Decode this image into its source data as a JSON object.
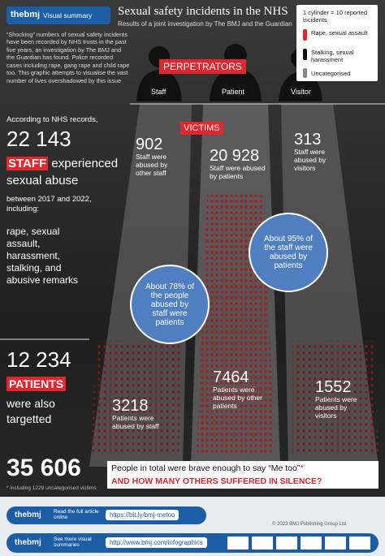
{
  "header": {
    "brand": "thebmj",
    "label": "Visual summary",
    "title": "Sexual safety incidents in the NHS",
    "subtitle": "Results of a joint investigation by The BMJ and the Guardian"
  },
  "legend": {
    "unit": "1 cylinder = 10 reported incidents",
    "items": [
      "Rape, sexual assault",
      "Stalking, sexual harassment",
      "Uncategorised"
    ]
  },
  "intro": "“Shocking” numbers of sexual safety incidents have been recorded by NHS trusts in the past five years, an investigation by The BMJ and the Guardian has found. Police recorded cases including rape, gang rape and child rape too. This graphic attempts to visualise the vast number of lives overshadowed by this issue",
  "perpetrators": {
    "heading": "PERPETRATORS",
    "groups": [
      "Staff",
      "Patient",
      "Visitor"
    ]
  },
  "victims_heading": "VICTIMS",
  "staff": {
    "lead": "According to NHS records,",
    "total": "22 143",
    "tag": "STAFF",
    "line1": "experienced",
    "line2": "sexual abuse",
    "period": "between 2017 and 2022, including:",
    "types": "rape, sexual assault, harassment, stalking, and abusive remarks"
  },
  "staff_flows": [
    {
      "number": "902",
      "text": "Staff were abused by other staff"
    },
    {
      "number": "20 928",
      "text": "Staff were abused by patients"
    },
    {
      "number": "313",
      "text": "Staff were abused by visitors"
    }
  ],
  "bubbles": [
    "About 95% of the staff were abused by patients",
    "About 78% of the people abused by staff were patients"
  ],
  "patients": {
    "total": "12 234",
    "tag": "PATIENTS",
    "line": "were also targetted"
  },
  "patient_flows": [
    {
      "number": "3218",
      "text": "Patients were abused by staff"
    },
    {
      "number": "7464",
      "text": "Patients were abused by other patients"
    },
    {
      "number": "1552",
      "text": "Patients were abused by visitors"
    }
  ],
  "summary": {
    "total": "35 606",
    "text": "People in total were brave enough to say “Me too”",
    "mark": "*",
    "question": "AND HOW MANY OTHERS SUFFERED IN SILENCE?",
    "footnote": "* including 1229 uncategorised victims"
  },
  "footer": {
    "brand": "thebmj",
    "read": "Read the full article online",
    "url": "https://bit.ly/bmj-metoo",
    "copyright": "© 2023 BMJ Publishing Group Ltd.",
    "more": "See more visual summaries",
    "more_url": "http://www.bmj.com/infographics"
  }
}
